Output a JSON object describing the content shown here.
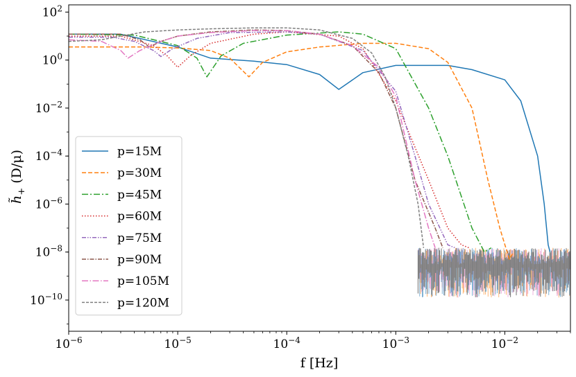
{
  "chart_data": {
    "type": "line",
    "xlabel": "f [Hz]",
    "ylabel_main": "h̃",
    "ylabel_sub": "+",
    "ylabel_rest": " (D/μ)",
    "xscale": "log",
    "yscale": "log",
    "xlim": [
      1e-06,
      0.04
    ],
    "ylim": [
      5e-12,
      200
    ],
    "x_ticks": [
      {
        "v": 1e-06,
        "base": "10",
        "exp": "−6"
      },
      {
        "v": 1e-05,
        "base": "10",
        "exp": "−5"
      },
      {
        "v": 0.0001,
        "base": "10",
        "exp": "−4"
      },
      {
        "v": 0.001,
        "base": "10",
        "exp": "−3"
      },
      {
        "v": 0.01,
        "base": "10",
        "exp": "−2"
      }
    ],
    "y_ticks": [
      {
        "v": 100,
        "base": "10",
        "exp": "2"
      },
      {
        "v": 1,
        "base": "10",
        "exp": "0"
      },
      {
        "v": 0.01,
        "base": "10",
        "exp": "−2"
      },
      {
        "v": 0.0001,
        "base": "10",
        "exp": "−4"
      },
      {
        "v": 1e-06,
        "base": "10",
        "exp": "−6"
      },
      {
        "v": 1e-08,
        "base": "10",
        "exp": "−8"
      },
      {
        "v": 1e-10,
        "base": "10",
        "exp": "−10"
      }
    ],
    "grid": false,
    "legend_position": "lower-left",
    "series": [
      {
        "name": "p=15M",
        "color": "#1f77b4",
        "dash": "solid",
        "x": [
          1e-06,
          3e-06,
          1e-05,
          2e-05,
          5e-05,
          0.0001,
          0.0002,
          0.0003,
          0.0005,
          0.001,
          0.003,
          0.005,
          0.01,
          0.014,
          0.02,
          0.023,
          0.025,
          0.026
        ],
        "y": [
          12,
          12,
          3.5,
          1.2,
          0.9,
          0.65,
          0.25,
          0.06,
          0.3,
          0.6,
          0.6,
          0.4,
          0.15,
          0.02,
          0.0001,
          1e-06,
          2e-08,
          1e-08
        ]
      },
      {
        "name": "p=30M",
        "color": "#ff7f0e",
        "dash": "dashed",
        "x": [
          1e-06,
          5e-06,
          1e-05,
          2e-05,
          3e-05,
          4.5e-05,
          6e-05,
          0.0001,
          0.0002,
          0.0005,
          0.001,
          0.002,
          0.003,
          0.005,
          0.007,
          0.009,
          0.011,
          0.012
        ],
        "y": [
          3.5,
          3.5,
          3.2,
          2.5,
          1.2,
          0.2,
          0.8,
          2.2,
          3.5,
          5,
          5,
          3,
          0.8,
          0.01,
          1e-05,
          1e-07,
          5e-09,
          1e-08
        ]
      },
      {
        "name": "p=45M",
        "color": "#2ca02c",
        "dash": "dashdot",
        "x": [
          1e-06,
          4e-06,
          1e-05,
          1.5e-05,
          1.85e-05,
          2.5e-05,
          4e-05,
          0.0001,
          0.0003,
          0.0005,
          0.001,
          0.002,
          0.003,
          0.005,
          0.0065,
          0.0075
        ],
        "y": [
          12,
          11,
          4,
          1.2,
          0.2,
          1.5,
          5,
          11,
          15,
          12,
          3,
          0.01,
          0.0001,
          1e-07,
          1e-08,
          1.5e-08
        ]
      },
      {
        "name": "p=60M",
        "color": "#d62728",
        "dash": "dotted",
        "x": [
          1e-06,
          3e-06,
          6e-06,
          8e-06,
          1e-05,
          1.3e-05,
          2e-05,
          5e-05,
          0.0001,
          0.0003,
          0.0005,
          0.001,
          0.002,
          0.003,
          0.004,
          0.0047
        ],
        "y": [
          10,
          10,
          4,
          1.5,
          0.5,
          1.5,
          5,
          12,
          15,
          10,
          3,
          0.02,
          1e-05,
          1e-07,
          2e-08,
          1.5e-08
        ]
      },
      {
        "name": "p=75M",
        "color": "#9467bd",
        "dash": "dashdotdot",
        "x": [
          1e-06,
          2.5e-06,
          4e-06,
          6e-06,
          7e-06,
          9e-06,
          1.5e-05,
          3e-05,
          0.0001,
          0.0002,
          0.0005,
          0.001,
          0.0015,
          0.002,
          0.003,
          0.0035
        ],
        "y": [
          9,
          9,
          6,
          2.5,
          1.4,
          3,
          8,
          14,
          15,
          12,
          2.5,
          0.05,
          0.0001,
          1e-06,
          2e-08,
          1.5e-08
        ]
      },
      {
        "name": "p=90M",
        "color": "#8c564b",
        "dash": "dashdotdot2",
        "x": [
          1e-06,
          3e-06,
          4.5e-06,
          5.5e-06,
          7e-06,
          1e-05,
          2e-05,
          5e-05,
          0.0001,
          0.0002,
          0.0004,
          0.0007,
          0.001,
          0.0015,
          0.0023,
          0.0027
        ],
        "y": [
          12,
          12,
          7,
          3.5,
          6,
          10,
          15,
          18,
          17,
          12,
          4,
          0.3,
          0.01,
          1e-05,
          1e-07,
          1.5e-08
        ]
      },
      {
        "name": "p=105M",
        "color": "#e377c2",
        "dash": "longdashdot",
        "x": [
          1e-06,
          2e-06,
          3e-06,
          3.5e-06,
          4.5e-06,
          7e-06,
          1e-05,
          2e-05,
          5e-05,
          0.0001,
          0.0002,
          0.0004,
          0.0007,
          0.001,
          0.0015,
          0.002,
          0.0023
        ],
        "y": [
          7,
          6,
          2.5,
          1.2,
          2.5,
          6,
          10,
          14,
          17,
          17,
          12,
          4,
          0.5,
          0.03,
          1e-05,
          1e-07,
          1.5e-08
        ]
      },
      {
        "name": "p=120M",
        "color": "#7f7f7f",
        "dash": "shortdash",
        "x": [
          1e-06,
          2e-06,
          3e-06,
          5e-06,
          1e-05,
          2e-05,
          5e-05,
          0.0001,
          0.0002,
          0.0004,
          0.0006,
          0.0008,
          0.001,
          0.0013,
          0.0016,
          0.0018
        ],
        "y": [
          6,
          7,
          10,
          15,
          18,
          20,
          22,
          22,
          18,
          8,
          2,
          0.2,
          0.01,
          0.0001,
          1e-06,
          1.5e-08
        ]
      }
    ],
    "noise_floor": {
      "color_front": "#7f7f7f",
      "x_start": 0.0016,
      "x_end": 0.04,
      "y_top": 1.5e-08,
      "y_bottom": 2e-10
    }
  }
}
